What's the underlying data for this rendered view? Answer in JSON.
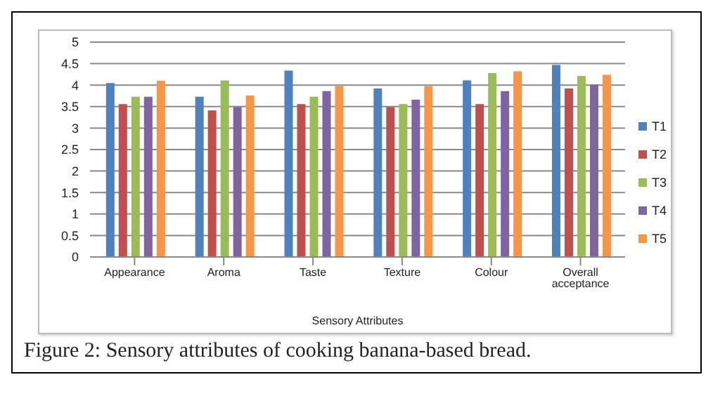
{
  "chart_data": {
    "type": "bar",
    "title": "Figure 2: Sensory attributes of cooking banana-based bread.",
    "xlabel": "Sensory Attributes",
    "categories": [
      "Appearance",
      "Aroma",
      "Taste",
      "Texture",
      "Colour",
      "Overall acceptance"
    ],
    "series": [
      {
        "name": "T1",
        "color": "#4f81bd",
        "values": [
          4.05,
          3.73,
          4.34,
          3.92,
          4.11,
          4.47
        ]
      },
      {
        "name": "T2",
        "color": "#c0504d",
        "values": [
          3.56,
          3.41,
          3.56,
          3.49,
          3.56,
          3.92
        ]
      },
      {
        "name": "T3",
        "color": "#9bbb59",
        "values": [
          3.73,
          4.11,
          3.73,
          3.56,
          4.28,
          4.21
        ]
      },
      {
        "name": "T4",
        "color": "#8064a2",
        "values": [
          3.73,
          3.49,
          3.86,
          3.66,
          3.86,
          4.01
        ]
      },
      {
        "name": "T5",
        "color": "#f79646",
        "values": [
          4.1,
          3.76,
          3.98,
          3.98,
          4.32,
          4.24
        ]
      }
    ],
    "ylim": [
      0,
      5
    ],
    "yticks": [
      0,
      0.5,
      1,
      1.5,
      2,
      2.5,
      3,
      3.5,
      4,
      4.5,
      5
    ],
    "grid": "y",
    "legend": "right"
  }
}
